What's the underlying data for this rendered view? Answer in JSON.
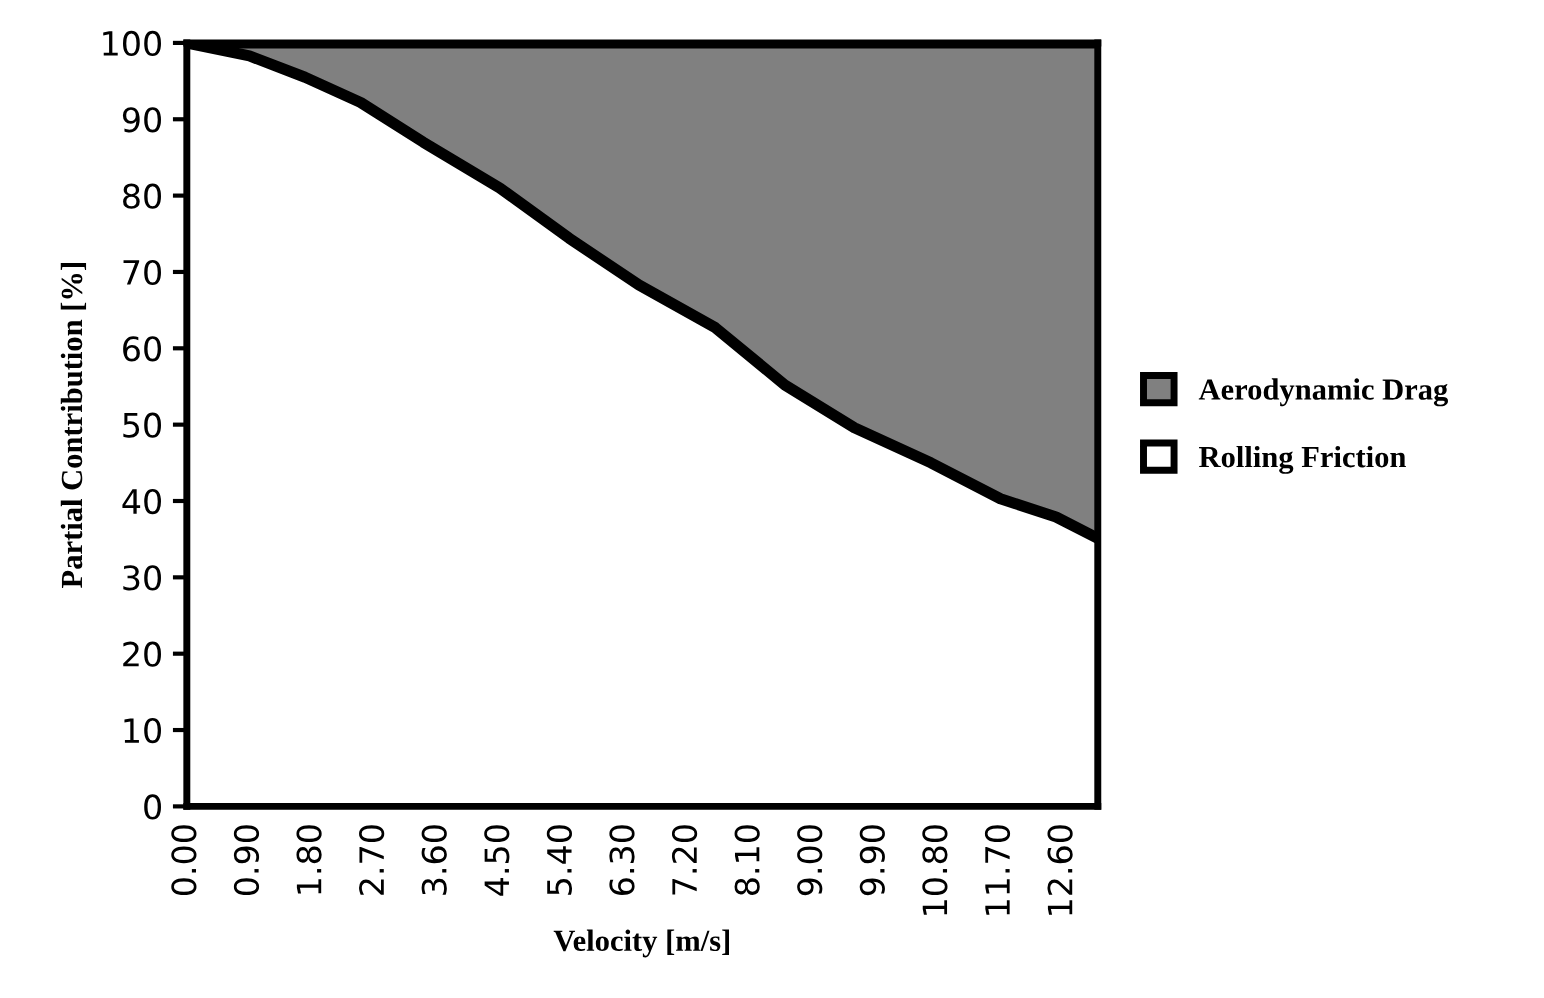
{
  "chart_data": {
    "type": "area",
    "stacked": true,
    "xlabel": "Velocity [m/s]",
    "ylabel": "Partial Contribution [%]",
    "x": [
      0,
      0.9,
      1.7,
      2.5,
      3.4,
      4.5,
      5.5,
      6.5,
      7.6,
      8.6,
      9.6,
      10.7,
      11.7,
      12.5,
      13.1
    ],
    "series": [
      {
        "name": "Rolling Friction",
        "color": "#ffffff",
        "values": [
          100,
          98.3,
          95.5,
          92.2,
          87.0,
          81.0,
          74.4,
          68.3,
          62.7,
          55.2,
          49.6,
          45.0,
          40.3,
          37.9,
          35.1
        ]
      },
      {
        "name": "Aerodynamic Drag",
        "color": "#808080",
        "values": [
          0,
          1.7,
          4.5,
          7.8,
          13.0,
          19.0,
          25.6,
          31.7,
          37.3,
          44.8,
          50.4,
          55.0,
          59.7,
          62.1,
          64.9
        ]
      }
    ],
    "xlim": [
      0,
      13.1
    ],
    "ylim": [
      0,
      100
    ],
    "xticks": [
      {
        "value": 0,
        "label": "0.00"
      },
      {
        "value": 0.9,
        "label": "0.90"
      },
      {
        "value": 1.8,
        "label": "1.80"
      },
      {
        "value": 2.7,
        "label": "2.70"
      },
      {
        "value": 3.6,
        "label": "3.60"
      },
      {
        "value": 4.5,
        "label": "4.50"
      },
      {
        "value": 5.4,
        "label": "5.40"
      },
      {
        "value": 6.3,
        "label": "6.30"
      },
      {
        "value": 7.2,
        "label": "7.20"
      },
      {
        "value": 8.1,
        "label": "8.10"
      },
      {
        "value": 9.0,
        "label": "9.00"
      },
      {
        "value": 9.9,
        "label": "9.90"
      },
      {
        "value": 10.8,
        "label": "10.80"
      },
      {
        "value": 11.7,
        "label": "11.70"
      },
      {
        "value": 12.6,
        "label": "12.60"
      }
    ],
    "yticks": [
      0,
      10,
      20,
      30,
      40,
      50,
      60,
      70,
      80,
      90,
      100
    ],
    "legend": "right"
  }
}
